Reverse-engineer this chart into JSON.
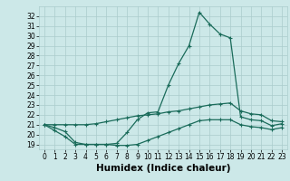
{
  "xlabel": "Humidex (Indice chaleur)",
  "bg_color": "#cce8e8",
  "grid_color": "#aacccc",
  "line_color": "#1a6b5a",
  "x_values": [
    0,
    1,
    2,
    3,
    4,
    5,
    6,
    7,
    8,
    9,
    10,
    11,
    12,
    13,
    14,
    15,
    16,
    17,
    18,
    19,
    20,
    21,
    22,
    23
  ],
  "y_main": [
    21.0,
    20.7,
    20.3,
    19.2,
    19.0,
    19.0,
    19.0,
    19.1,
    20.2,
    21.5,
    22.2,
    22.3,
    25.0,
    27.2,
    29.0,
    32.4,
    31.2,
    30.2,
    29.8,
    21.8,
    21.5,
    21.4,
    20.9,
    21.1
  ],
  "y_low": [
    21.0,
    20.4,
    19.8,
    19.0,
    19.0,
    19.0,
    19.0,
    18.9,
    18.9,
    19.0,
    19.4,
    19.8,
    20.2,
    20.6,
    21.0,
    21.4,
    21.5,
    21.5,
    21.5,
    21.0,
    20.8,
    20.7,
    20.5,
    20.7
  ],
  "y_high": [
    21.0,
    21.0,
    21.0,
    21.0,
    21.0,
    21.1,
    21.3,
    21.5,
    21.7,
    21.9,
    22.0,
    22.1,
    22.3,
    22.4,
    22.6,
    22.8,
    23.0,
    23.1,
    23.2,
    22.4,
    22.1,
    22.0,
    21.4,
    21.3
  ],
  "ylim": [
    18.5,
    33.0
  ],
  "yticks": [
    19,
    20,
    21,
    22,
    23,
    24,
    25,
    26,
    27,
    28,
    29,
    30,
    31,
    32
  ],
  "xticks": [
    0,
    1,
    2,
    3,
    4,
    5,
    6,
    7,
    8,
    9,
    10,
    11,
    12,
    13,
    14,
    15,
    16,
    17,
    18,
    19,
    20,
    21,
    22,
    23
  ],
  "tick_fontsize": 5.5,
  "label_fontsize": 7.5
}
